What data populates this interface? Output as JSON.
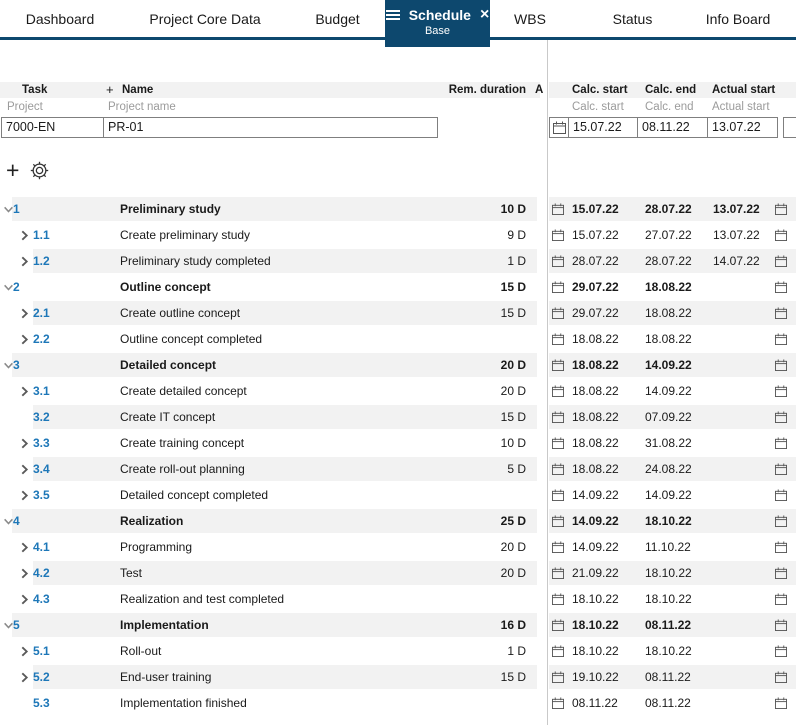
{
  "colors": {
    "accent_navy": "#0d486e",
    "task_id_blue": "#1d77b8",
    "row_alt_gray": "#f2f2f2",
    "header_gray": "#f2f2f2"
  },
  "icons": {
    "close": "×",
    "add": "+"
  },
  "nav": {
    "tabs": [
      {
        "label": "Dashboard",
        "active": false
      },
      {
        "label": "Project Core Data",
        "active": false
      },
      {
        "label": "Budget",
        "active": false
      },
      {
        "label": "Schedule",
        "active": true,
        "sublabel": "Base"
      },
      {
        "label": "WBS",
        "active": false
      },
      {
        "label": "Status",
        "active": false
      },
      {
        "label": "Info Board",
        "active": false
      }
    ]
  },
  "headers": {
    "left": {
      "task": "Task",
      "add": "+",
      "name": "Name",
      "rem_duration": "Rem. duration",
      "clipped": "A"
    },
    "left_sub": {
      "task": "Project",
      "name": "Project name"
    },
    "right": {
      "calc_start": "Calc. start",
      "calc_end": "Calc. end",
      "actual_start": "Actual start"
    },
    "right_sub": {
      "calc_start": "Calc. start",
      "calc_end": "Calc. end",
      "actual_start": "Actual start"
    }
  },
  "project_row": {
    "id": "7000-EN",
    "name": "PR-01",
    "calc_start": "15.07.22",
    "calc_end": "08.11.22",
    "actual_start": "13.07.22"
  },
  "rows": [
    {
      "id": "1",
      "level": 1,
      "expand": "down",
      "name": "Preliminary study",
      "duration": "10 D",
      "calc_start": "15.07.22",
      "calc_end": "28.07.22",
      "actual_start": "13.07.22"
    },
    {
      "id": "1.1",
      "level": 2,
      "expand": "right",
      "name": "Create preliminary study",
      "duration": "9 D",
      "calc_start": "15.07.22",
      "calc_end": "27.07.22",
      "actual_start": "13.07.22"
    },
    {
      "id": "1.2",
      "level": 2,
      "expand": "right",
      "name": "Preliminary study completed",
      "duration": "1 D",
      "calc_start": "28.07.22",
      "calc_end": "28.07.22",
      "actual_start": "14.07.22"
    },
    {
      "id": "2",
      "level": 1,
      "expand": "down",
      "name": "Outline concept",
      "duration": "15 D",
      "calc_start": "29.07.22",
      "calc_end": "18.08.22",
      "actual_start": ""
    },
    {
      "id": "2.1",
      "level": 2,
      "expand": "right",
      "name": "Create outline concept",
      "duration": "15 D",
      "calc_start": "29.07.22",
      "calc_end": "18.08.22",
      "actual_start": ""
    },
    {
      "id": "2.2",
      "level": 2,
      "expand": "right",
      "name": "Outline concept completed",
      "duration": "",
      "calc_start": "18.08.22",
      "calc_end": "18.08.22",
      "actual_start": ""
    },
    {
      "id": "3",
      "level": 1,
      "expand": "down",
      "name": "Detailed concept",
      "duration": "20 D",
      "calc_start": "18.08.22",
      "calc_end": "14.09.22",
      "actual_start": ""
    },
    {
      "id": "3.1",
      "level": 2,
      "expand": "right",
      "name": "Create detailed concept",
      "duration": "20 D",
      "calc_start": "18.08.22",
      "calc_end": "14.09.22",
      "actual_start": ""
    },
    {
      "id": "3.2",
      "level": 2,
      "expand": "none",
      "name": "Create IT concept",
      "duration": "15 D",
      "calc_start": "18.08.22",
      "calc_end": "07.09.22",
      "actual_start": ""
    },
    {
      "id": "3.3",
      "level": 2,
      "expand": "right",
      "name": "Create training concept",
      "duration": "10 D",
      "calc_start": "18.08.22",
      "calc_end": "31.08.22",
      "actual_start": ""
    },
    {
      "id": "3.4",
      "level": 2,
      "expand": "right",
      "name": "Create roll-out planning",
      "duration": "5 D",
      "calc_start": "18.08.22",
      "calc_end": "24.08.22",
      "actual_start": ""
    },
    {
      "id": "3.5",
      "level": 2,
      "expand": "right",
      "name": "Detailed concept completed",
      "duration": "",
      "calc_start": "14.09.22",
      "calc_end": "14.09.22",
      "actual_start": ""
    },
    {
      "id": "4",
      "level": 1,
      "expand": "down",
      "name": "Realization",
      "duration": "25 D",
      "calc_start": "14.09.22",
      "calc_end": "18.10.22",
      "actual_start": ""
    },
    {
      "id": "4.1",
      "level": 2,
      "expand": "right",
      "name": "Programming",
      "duration": "20 D",
      "calc_start": "14.09.22",
      "calc_end": "11.10.22",
      "actual_start": ""
    },
    {
      "id": "4.2",
      "level": 2,
      "expand": "right",
      "name": "Test",
      "duration": "20 D",
      "calc_start": "21.09.22",
      "calc_end": "18.10.22",
      "actual_start": ""
    },
    {
      "id": "4.3",
      "level": 2,
      "expand": "right",
      "name": "Realization and test completed",
      "duration": "",
      "calc_start": "18.10.22",
      "calc_end": "18.10.22",
      "actual_start": ""
    },
    {
      "id": "5",
      "level": 1,
      "expand": "down",
      "name": "Implementation",
      "duration": "16 D",
      "calc_start": "18.10.22",
      "calc_end": "08.11.22",
      "actual_start": ""
    },
    {
      "id": "5.1",
      "level": 2,
      "expand": "right",
      "name": "Roll-out",
      "duration": "1 D",
      "calc_start": "18.10.22",
      "calc_end": "18.10.22",
      "actual_start": ""
    },
    {
      "id": "5.2",
      "level": 2,
      "expand": "right",
      "name": "End-user training",
      "duration": "15 D",
      "calc_start": "19.10.22",
      "calc_end": "08.11.22",
      "actual_start": ""
    },
    {
      "id": "5.3",
      "level": 2,
      "expand": "none",
      "name": "Implementation finished",
      "duration": "",
      "calc_start": "08.11.22",
      "calc_end": "08.11.22",
      "actual_start": ""
    }
  ]
}
